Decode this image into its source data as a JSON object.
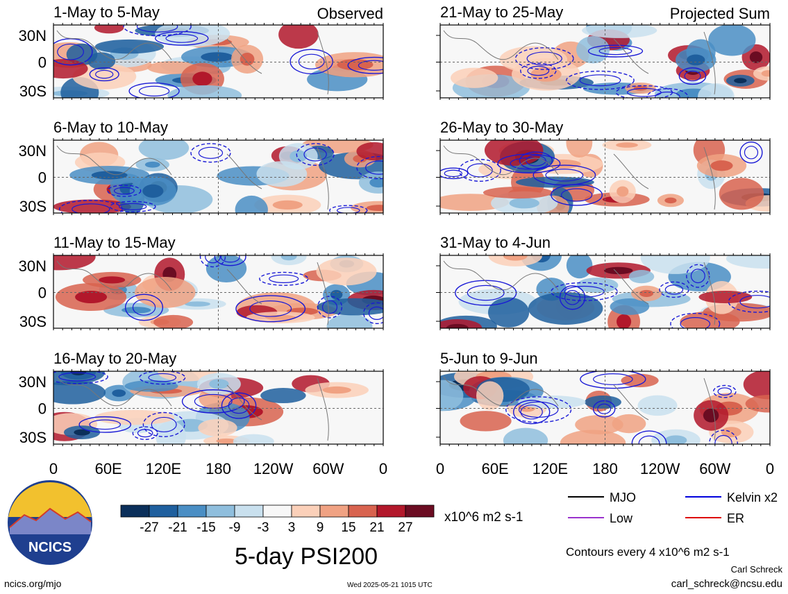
{
  "figure": {
    "title": "5-day PSI200",
    "units": "x10^6 m2 s-1",
    "contour_note": "Contours every 4 x10^6 m2 s-1",
    "author": "Carl Schreck",
    "email": "carl_schreck@ncsu.edu",
    "site": "ncics.org/mjo",
    "timestamp": "Wed 2025-05-21 1015 UTC",
    "logo_text": "NCICS"
  },
  "legend": {
    "items": [
      {
        "label": "MJO",
        "color": "#000000"
      },
      {
        "label": "Kelvin x2",
        "color": "#0000dd"
      },
      {
        "label": "Low",
        "color": "#9a32cd"
      },
      {
        "label": "ER",
        "color": "#dd0000"
      }
    ]
  },
  "colorbar": {
    "labels": [
      "-27",
      "-21",
      "-15",
      "-9",
      "-3",
      "3",
      "9",
      "15",
      "21",
      "27"
    ],
    "colors": [
      "#0b2f5a",
      "#1f5f9e",
      "#4a8ec4",
      "#8fbedd",
      "#c9e0ee",
      "#f7f7f7",
      "#fbd0b9",
      "#f0a283",
      "#d8634f",
      "#b2182b",
      "#6b0c22"
    ]
  },
  "chart_data": {
    "type": "heatmap",
    "xlabels": [
      "0",
      "60E",
      "120E",
      "180",
      "120W",
      "60W",
      "0"
    ],
    "ylabels": [
      "30N",
      "0",
      "30S"
    ],
    "columns": [
      {
        "header": "Observed",
        "panels": [
          {
            "title": "1-May to 5-May"
          },
          {
            "title": "6-May to 10-May"
          },
          {
            "title": "11-May to 15-May"
          },
          {
            "title": "16-May to 20-May"
          }
        ]
      },
      {
        "header": "Projected Sum",
        "panels": [
          {
            "title": "21-May to 25-May"
          },
          {
            "title": "26-May to 30-May"
          },
          {
            "title": "31-May to 4-Jun"
          },
          {
            "title": "5-Jun to 9-Jun"
          }
        ]
      }
    ]
  }
}
